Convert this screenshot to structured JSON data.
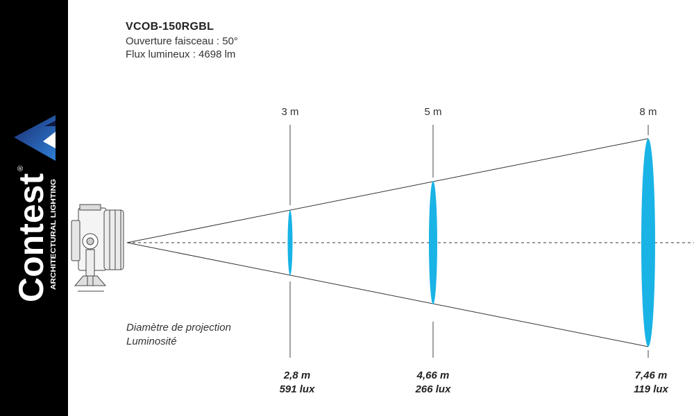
{
  "brand": {
    "name": "Contest",
    "tagline": "ARCHITECTURAL LIGHTING",
    "mark": "®"
  },
  "product": {
    "model": "VCOB-150RGBL",
    "beam_angle": "Ouverture faisceau : 50°",
    "luminous_flux": "Flux lumineux : 4698 lm"
  },
  "legend": {
    "diameter": "Diamètre de projection",
    "illuminance": "Luminosité"
  },
  "measures": [
    {
      "distance": "3 m",
      "diameter": "2,8 m",
      "lux": "591 lux"
    },
    {
      "distance": "5 m",
      "diameter": "4,66 m",
      "lux": "266 lux"
    },
    {
      "distance": "8 m",
      "diameter": "7,46 m",
      "lux": "119 lux"
    }
  ],
  "colors": {
    "beam_spot": "#19b3e6",
    "sidebar": "#000000",
    "brand_accent_light": "#2f7fd6",
    "brand_accent_dark": "#1a2c6e"
  },
  "icons": {
    "fixture": "floodlight-fixture-icon",
    "logo": "contest-triangle-logo-icon"
  }
}
